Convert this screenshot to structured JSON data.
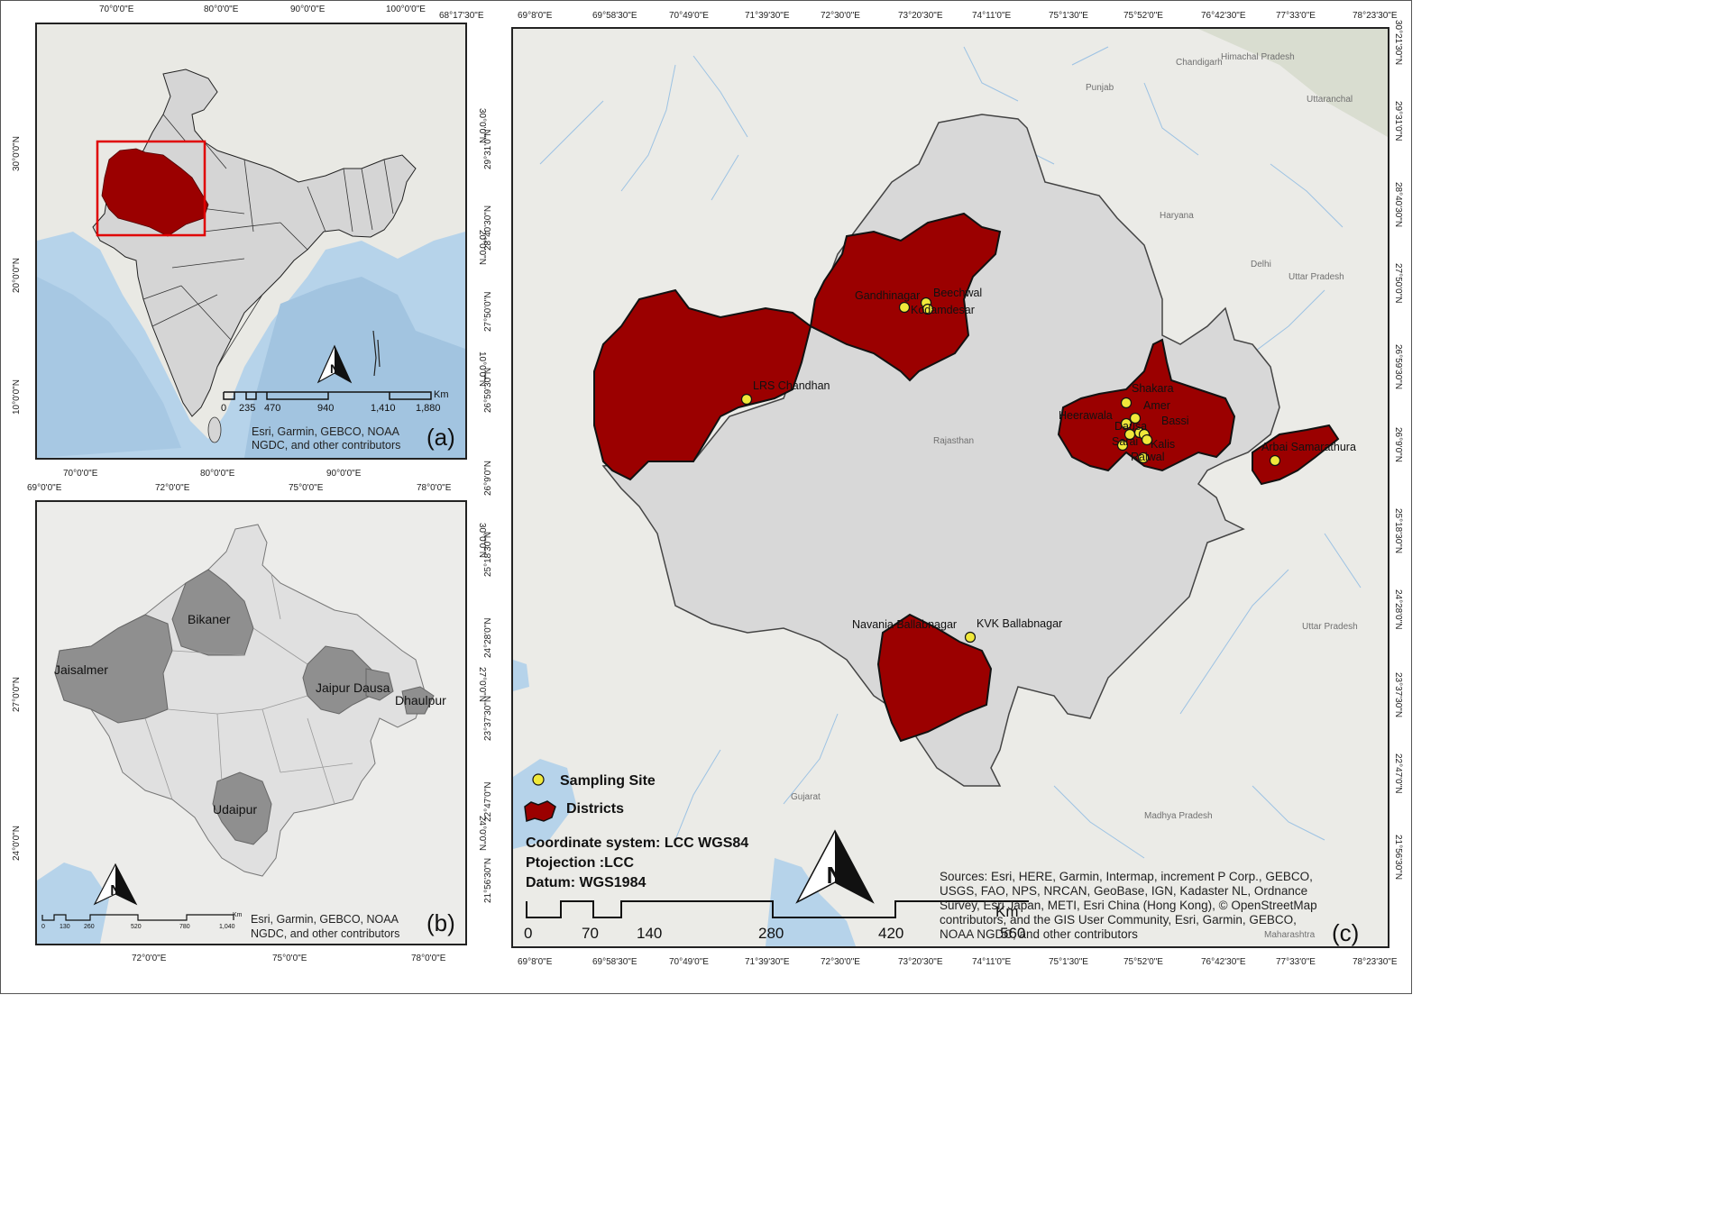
{
  "colors": {
    "district_fill": "#9b0000",
    "state_fill": "#d8d8d8",
    "highlight_district": "#8f8f8f",
    "light_district": "#e1e1e1",
    "inset_box": "#e00000",
    "site_fill": "#f0e83a",
    "land": "#eaeae5",
    "water": "#b6d3ea"
  },
  "panel_a": {
    "letter": "(a)",
    "top_ticks": [
      "70°0'0\"E",
      "80°0'0\"E",
      "90°0'0\"E",
      "100°0'0\"E"
    ],
    "bottom_ticks": [
      "70°0'0\"E",
      "80°0'0\"E",
      "90°0'0\"E"
    ],
    "left_ticks": [
      "30°0'0\"N",
      "20°0'0\"N",
      "10°0'0\"N"
    ],
    "right_ticks": [
      "30°0'0\"N",
      "20°0'0\"N",
      "10°0'0\"N"
    ],
    "scale_labels": [
      "0",
      "235",
      "470",
      "940",
      "1,410",
      "1,880"
    ],
    "scale_unit": "Km",
    "credit_lines": [
      "Esri, Garmin, GEBCO, NOAA",
      "NGDC, and other contributors"
    ]
  },
  "panel_b": {
    "letter": "(b)",
    "top_ticks": [
      "69°0'0\"E",
      "72°0'0\"E",
      "75°0'0\"E",
      "78°0'0\"E"
    ],
    "bottom_ticks": [
      "72°0'0\"E",
      "75°0'0\"E",
      "78°0'0\"E"
    ],
    "left_ticks": [
      "27°0'0\"N",
      "24°0'0\"N"
    ],
    "right_ticks": [
      "30°0'0\"N",
      "27°0'0\"N",
      "24°0'0\"N"
    ],
    "districts": [
      "Bikaner",
      "Jaisalmer",
      "Jaipur",
      "Dausa",
      "Dhaulpur",
      "Udaipur"
    ],
    "scale_labels": [
      "0",
      "130",
      "260",
      "520",
      "780",
      "1,040"
    ],
    "scale_unit": "Km",
    "credit_lines": [
      "Esri, Garmin, GEBCO, NOAA",
      "NGDC, and other contributors"
    ]
  },
  "panel_c": {
    "letter": "(c)",
    "top_ticks": [
      "68°17'30\"E",
      "69°8'0\"E",
      "69°58'30\"E",
      "70°49'0\"E",
      "71°39'30\"E",
      "72°30'0\"E",
      "73°20'30\"E",
      "74°11'0\"E",
      "75°1'30\"E",
      "75°52'0\"E",
      "76°42'30\"E",
      "77°33'0\"E",
      "78°23'30\"E"
    ],
    "bottom_ticks": [
      "69°8'0\"E",
      "69°58'30\"E",
      "70°49'0\"E",
      "71°39'30\"E",
      "72°30'0\"E",
      "73°20'30\"E",
      "74°11'0\"E",
      "75°1'30\"E",
      "75°52'0\"E",
      "76°42'30\"E",
      "77°33'0\"E",
      "78°23'30\"E"
    ],
    "left_ticks": [
      "29°31'0\"N",
      "28°40'30\"N",
      "27°50'0\"N",
      "26°59'30\"N",
      "26°9'0\"N",
      "25°18'30\"N",
      "24°28'0\"N",
      "23°37'30\"N",
      "22°47'0\"N",
      "21°56'30\"N"
    ],
    "right_ticks": [
      "30°21'30\"N",
      "29°31'0\"N",
      "28°40'30\"N",
      "27°50'0\"N",
      "26°59'30\"N",
      "26°9'0\"N",
      "25°18'30\"N",
      "24°28'0\"N",
      "23°37'30\"N",
      "22°47'0\"N",
      "21°56'30\"N"
    ],
    "region_labels": [
      "Chandigarh",
      "Himachal Pradesh",
      "Punjab",
      "Uttaranchal",
      "Haryana",
      "Delhi",
      "Uttar Pradesh",
      "Rajasthan",
      "Uttar Pradesh",
      "Gujarat",
      "Madhya Pradesh",
      "Maharashtra"
    ],
    "sites": [
      "Gandhinagar",
      "Beechwal",
      "Kodamdesar",
      "LRS Chandhan",
      "Shakara",
      "Amer",
      "Heerawala",
      "Bassi",
      "Dausa",
      "Sarai",
      "Kalis",
      "Raiwal",
      "Arbai Samarathura",
      "Navania Ballabnagar",
      "KVK Ballabnagar"
    ],
    "legend": {
      "site": "Sampling Site",
      "districts": "Districts"
    },
    "info": [
      "Coordinate system: LCC WGS84",
      "Ptojection :LCC",
      "Datum: WGS1984"
    ],
    "scale_labels": [
      "0",
      "70",
      "140",
      "280",
      "420",
      "560"
    ],
    "scale_unit": "Km",
    "credit_lines": [
      "Sources: Esri, HERE, Garmin, Intermap, increment P Corp., GEBCO,",
      "USGS, FAO, NPS, NRCAN, GeoBase, IGN, Kadaster NL, Ordnance",
      "Survey, Esri Japan, METI, Esri China (Hong Kong), © OpenStreetMap",
      "contributors, and the GIS User Community, Esri, Garmin, GEBCO,",
      "NOAA NGDC, and other contributors"
    ]
  }
}
